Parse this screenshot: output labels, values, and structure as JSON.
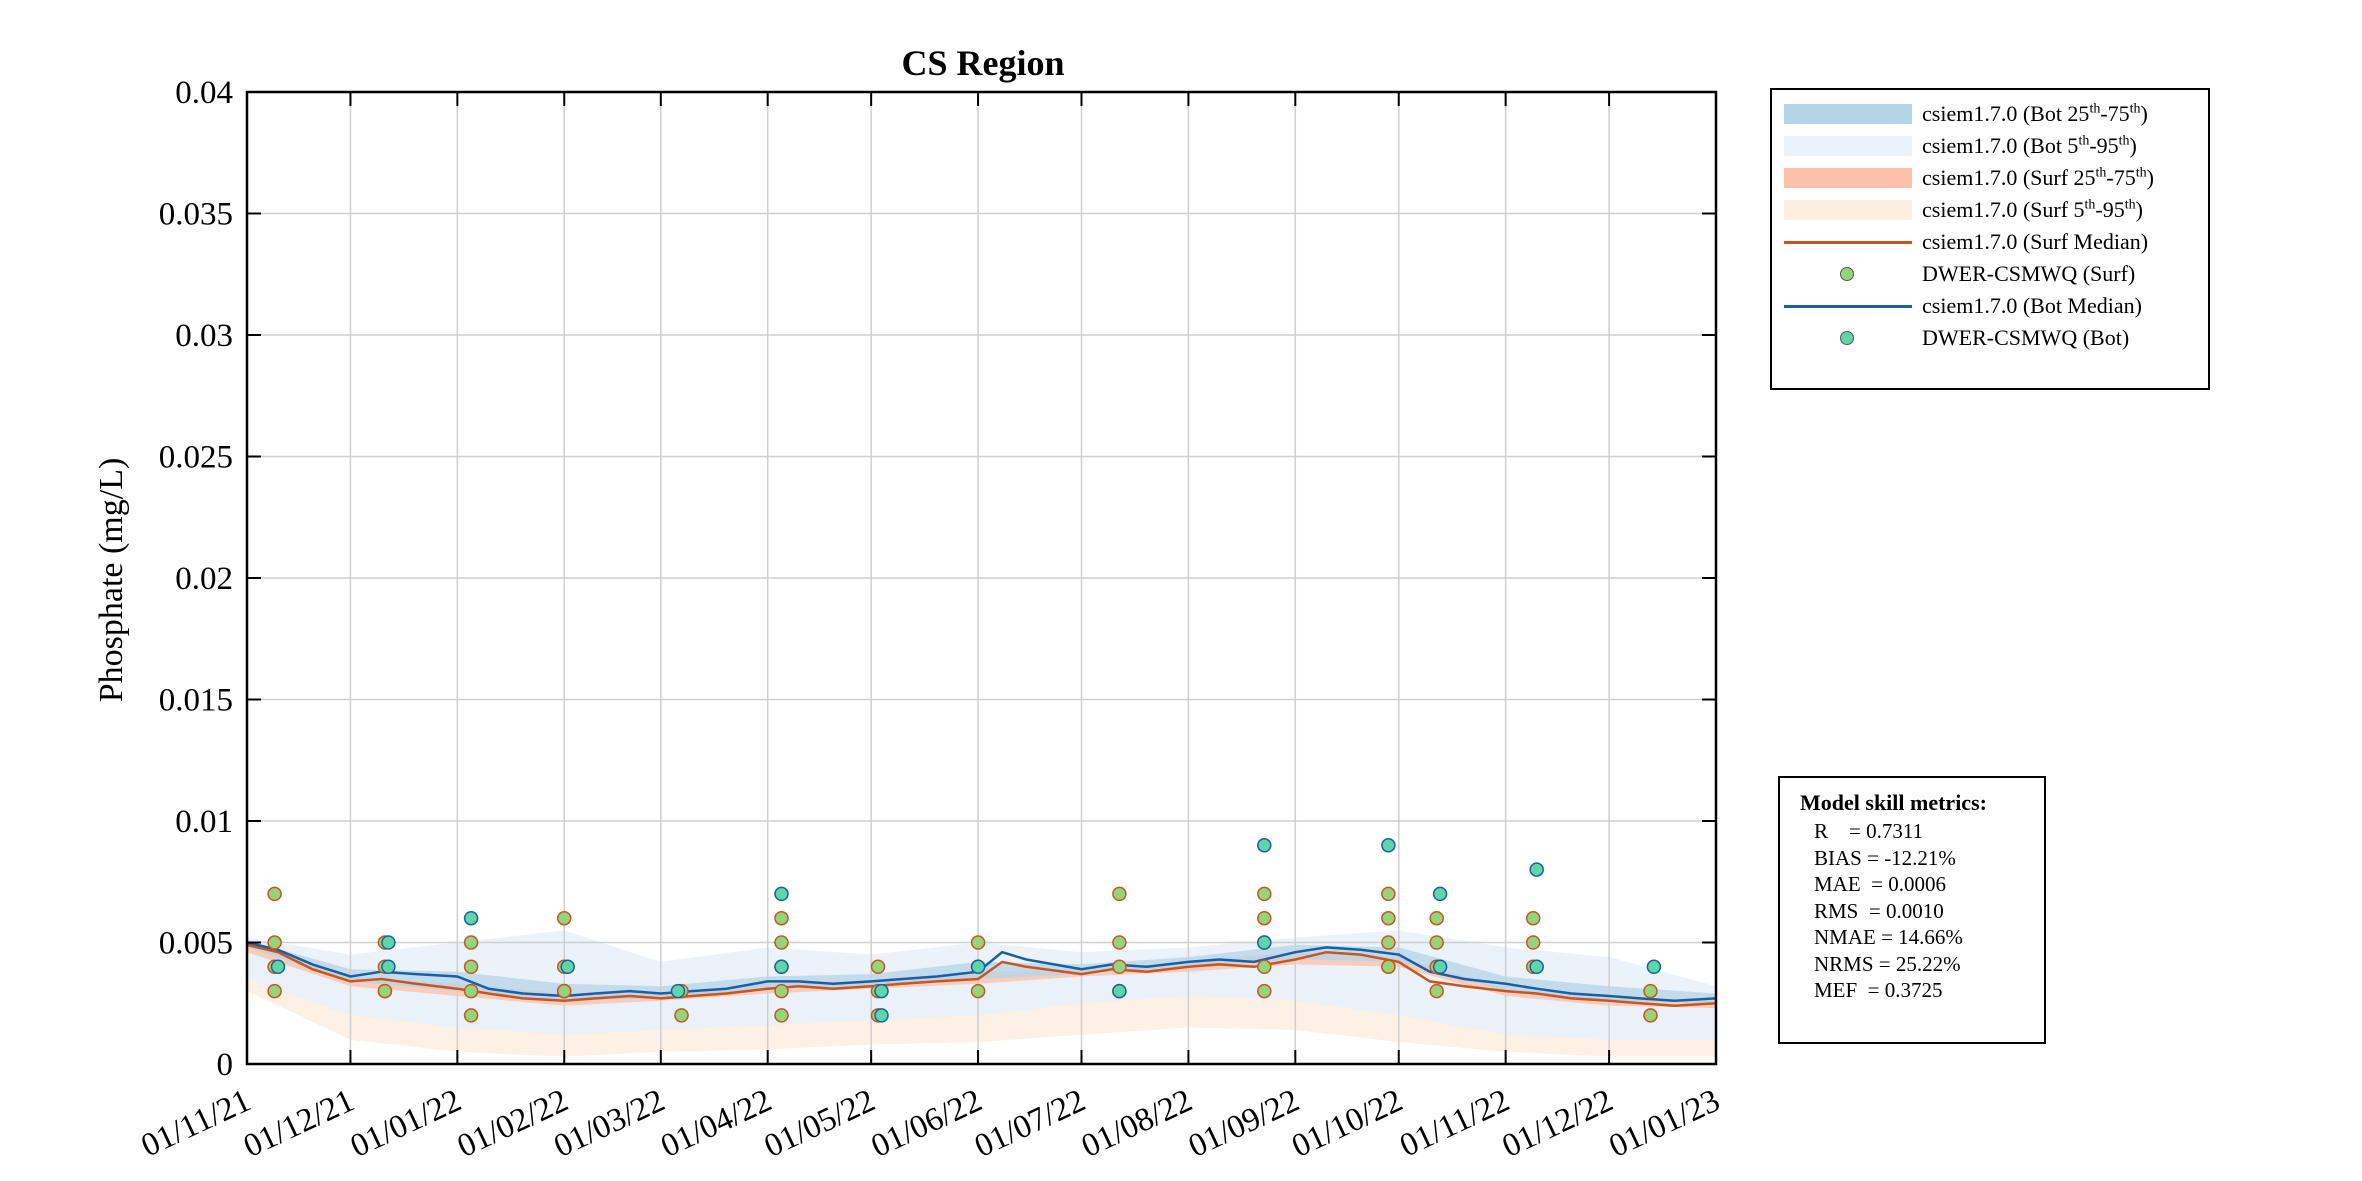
{
  "chart_data": {
    "type": "line",
    "title": "CS Region",
    "ylabel": "Phosphate (mg/L)",
    "xlabel": "",
    "xlim": [
      "2021-11-01",
      "2023-01-01"
    ],
    "ylim": [
      0,
      0.04
    ],
    "y_ticks": [
      "0",
      "0.005",
      "0.01",
      "0.015",
      "0.02",
      "0.025",
      "0.03",
      "0.035",
      "0.04"
    ],
    "x_ticks": [
      "01/11/21",
      "01/12/21",
      "01/01/22",
      "01/02/22",
      "01/03/22",
      "01/04/22",
      "01/05/22",
      "01/06/22",
      "01/07/22",
      "01/08/22",
      "01/09/22",
      "01/10/22",
      "01/11/22",
      "01/12/22",
      "01/01/23"
    ],
    "grid": true,
    "legend_position": "outside-top-right",
    "colors": {
      "bot_25_75": "#b4d4ea",
      "bot_5_95": "#e9f1f9",
      "surf_25_75": "#fdc0a9",
      "surf_5_95": "#fdeee2",
      "surf_median": "#c8561e",
      "bot_median": "#1a5fa6",
      "obs_surf": "#94d47a",
      "obs_bot": "#5fd6a6"
    },
    "legend": [
      {
        "key": "bot_25_75",
        "kind": "patch",
        "text": "csiem1.7.0 (Bot 25",
        "sup1": "th",
        "mid": "-75",
        "sup2": "th",
        "end": ")"
      },
      {
        "key": "bot_5_95",
        "kind": "patch",
        "text": "csiem1.7.0 (Bot 5",
        "sup1": "th",
        "mid": "-95",
        "sup2": "th",
        "end": ")"
      },
      {
        "key": "surf_25_75",
        "kind": "patch",
        "text": "csiem1.7.0 (Surf 25",
        "sup1": "th",
        "mid": "-75",
        "sup2": "th",
        "end": ")"
      },
      {
        "key": "surf_5_95",
        "kind": "patch",
        "text": "csiem1.7.0 (Surf 5",
        "sup1": "th",
        "mid": "-95",
        "sup2": "th",
        "end": ")"
      },
      {
        "key": "surf_median",
        "kind": "line",
        "text": "csiem1.7.0 (Surf Median)",
        "sup1": "",
        "mid": "",
        "sup2": "",
        "end": ""
      },
      {
        "key": "obs_surf",
        "kind": "marker",
        "text": "DWER-CSMWQ (Surf)",
        "sup1": "",
        "mid": "",
        "sup2": "",
        "end": ""
      },
      {
        "key": "bot_median",
        "kind": "line",
        "text": "csiem1.7.0 (Bot Median)",
        "sup1": "",
        "mid": "",
        "sup2": "",
        "end": ""
      },
      {
        "key": "obs_bot",
        "kind": "marker",
        "text": "DWER-CSMWQ (Bot)",
        "sup1": "",
        "mid": "",
        "sup2": "",
        "end": ""
      }
    ],
    "series": [
      {
        "name": "csiem1.7.0 (Surf Median)",
        "key": "surf_median",
        "x": [
          "2021-11-01",
          "2021-11-10",
          "2021-11-20",
          "2021-12-01",
          "2021-12-10",
          "2021-12-20",
          "2022-01-01",
          "2022-01-10",
          "2022-01-20",
          "2022-02-01",
          "2022-02-10",
          "2022-02-20",
          "2022-03-01",
          "2022-03-10",
          "2022-03-20",
          "2022-04-01",
          "2022-04-10",
          "2022-04-20",
          "2022-05-01",
          "2022-05-10",
          "2022-05-20",
          "2022-06-01",
          "2022-06-08",
          "2022-06-15",
          "2022-07-01",
          "2022-07-10",
          "2022-07-20",
          "2022-08-01",
          "2022-08-10",
          "2022-08-20",
          "2022-09-01",
          "2022-09-10",
          "2022-09-20",
          "2022-10-01",
          "2022-10-10",
          "2022-10-20",
          "2022-11-01",
          "2022-11-10",
          "2022-11-20",
          "2022-12-01",
          "2022-12-10",
          "2022-12-20",
          "2023-01-01"
        ],
        "y": [
          0.0049,
          0.0046,
          0.0039,
          0.0034,
          0.0035,
          0.0033,
          0.0031,
          0.0029,
          0.0027,
          0.0026,
          0.0027,
          0.0028,
          0.0027,
          0.0028,
          0.0029,
          0.0031,
          0.0032,
          0.0031,
          0.0032,
          0.0033,
          0.0034,
          0.0035,
          0.0042,
          0.004,
          0.0037,
          0.0039,
          0.0038,
          0.004,
          0.0041,
          0.004,
          0.0043,
          0.0046,
          0.0045,
          0.0042,
          0.0034,
          0.0032,
          0.003,
          0.0029,
          0.0027,
          0.0026,
          0.0025,
          0.0024,
          0.0025
        ]
      },
      {
        "name": "csiem1.7.0 (Bot Median)",
        "key": "bot_median",
        "x": [
          "2021-11-01",
          "2021-11-10",
          "2021-11-20",
          "2021-12-01",
          "2021-12-10",
          "2021-12-20",
          "2022-01-01",
          "2022-01-10",
          "2022-01-20",
          "2022-02-01",
          "2022-02-10",
          "2022-02-20",
          "2022-03-01",
          "2022-03-10",
          "2022-03-20",
          "2022-04-01",
          "2022-04-10",
          "2022-04-20",
          "2022-05-01",
          "2022-05-10",
          "2022-05-20",
          "2022-06-01",
          "2022-06-08",
          "2022-06-15",
          "2022-07-01",
          "2022-07-10",
          "2022-07-20",
          "2022-08-01",
          "2022-08-10",
          "2022-08-20",
          "2022-09-01",
          "2022-09-10",
          "2022-09-20",
          "2022-10-01",
          "2022-10-10",
          "2022-10-20",
          "2022-11-01",
          "2022-11-10",
          "2022-11-20",
          "2022-12-01",
          "2022-12-10",
          "2022-12-20",
          "2023-01-01"
        ],
        "y": [
          0.005,
          0.0047,
          0.0041,
          0.0036,
          0.0038,
          0.0037,
          0.0036,
          0.0031,
          0.0029,
          0.0028,
          0.0029,
          0.003,
          0.0029,
          0.003,
          0.0031,
          0.0034,
          0.0034,
          0.0033,
          0.0034,
          0.0035,
          0.0036,
          0.0038,
          0.0046,
          0.0043,
          0.0039,
          0.0041,
          0.004,
          0.0042,
          0.0043,
          0.0042,
          0.0046,
          0.0048,
          0.0047,
          0.0045,
          0.0038,
          0.0035,
          0.0033,
          0.0031,
          0.0029,
          0.0028,
          0.0027,
          0.0026,
          0.0027
        ]
      }
    ],
    "bands": {
      "x": [
        "2021-11-01",
        "2021-12-01",
        "2022-01-01",
        "2022-02-01",
        "2022-03-01",
        "2022-04-01",
        "2022-05-01",
        "2022-06-01",
        "2022-07-01",
        "2022-08-01",
        "2022-09-01",
        "2022-10-01",
        "2022-11-01",
        "2022-12-01",
        "2023-01-01"
      ],
      "surf_5_95": {
        "low": [
          0.003,
          0.001,
          0.0005,
          0.0003,
          0.0005,
          0.0006,
          0.0008,
          0.0009,
          0.0012,
          0.0015,
          0.0014,
          0.0009,
          0.0005,
          0.0003,
          0.0003
        ],
        "high": [
          0.005,
          0.004,
          0.0038,
          0.0034,
          0.0035,
          0.0037,
          0.0038,
          0.0042,
          0.0042,
          0.0045,
          0.0048,
          0.0046,
          0.0034,
          0.003,
          0.0028
        ]
      },
      "surf_25_75": {
        "low": [
          0.0046,
          0.0032,
          0.0028,
          0.0024,
          0.0026,
          0.0029,
          0.0031,
          0.0033,
          0.0036,
          0.0038,
          0.0041,
          0.004,
          0.0028,
          0.0024,
          0.0023
        ],
        "high": [
          0.005,
          0.0036,
          0.0033,
          0.0029,
          0.0029,
          0.0033,
          0.0034,
          0.0038,
          0.0039,
          0.0042,
          0.0046,
          0.0044,
          0.0031,
          0.0027,
          0.0026
        ]
      },
      "bot_5_95": {
        "low": [
          0.0035,
          0.002,
          0.0015,
          0.0012,
          0.0014,
          0.0016,
          0.0018,
          0.002,
          0.0025,
          0.0028,
          0.0026,
          0.002,
          0.0012,
          0.001,
          0.001
        ],
        "high": [
          0.0052,
          0.0045,
          0.005,
          0.0055,
          0.0042,
          0.0048,
          0.0045,
          0.005,
          0.0046,
          0.0048,
          0.0052,
          0.0055,
          0.0048,
          0.0044,
          0.0032
        ]
      },
      "bot_25_75": {
        "low": [
          0.0048,
          0.0034,
          0.003,
          0.0026,
          0.0027,
          0.0031,
          0.0032,
          0.0035,
          0.0037,
          0.004,
          0.0043,
          0.0042,
          0.003,
          0.0026,
          0.0025
        ],
        "high": [
          0.0051,
          0.0039,
          0.0038,
          0.0033,
          0.0032,
          0.0036,
          0.0037,
          0.0042,
          0.0041,
          0.0044,
          0.0049,
          0.0048,
          0.0036,
          0.0032,
          0.0029
        ]
      }
    },
    "observations": {
      "surf": {
        "name": "DWER-CSMWQ (Surf)",
        "key": "obs_surf",
        "x": [
          "2021-11-09",
          "2021-11-09",
          "2021-11-09",
          "2021-11-09",
          "2021-12-11",
          "2021-12-11",
          "2021-12-11",
          "2021-12-11",
          "2022-01-05",
          "2022-01-05",
          "2022-01-05",
          "2022-01-05",
          "2022-02-01",
          "2022-02-01",
          "2022-02-01",
          "2022-02-01",
          "2022-02-01",
          "2022-03-07",
          "2022-03-07",
          "2022-04-05",
          "2022-04-05",
          "2022-04-05",
          "2022-04-05",
          "2022-04-05",
          "2022-05-03",
          "2022-05-03",
          "2022-05-03",
          "2022-06-01",
          "2022-06-01",
          "2022-06-01",
          "2022-07-12",
          "2022-07-12",
          "2022-07-12",
          "2022-07-12",
          "2022-08-23",
          "2022-08-23",
          "2022-08-23",
          "2022-08-23",
          "2022-08-23",
          "2022-09-28",
          "2022-09-28",
          "2022-09-28",
          "2022-09-28",
          "2022-09-28",
          "2022-10-12",
          "2022-10-12",
          "2022-10-12",
          "2022-10-12",
          "2022-10-12",
          "2022-11-09",
          "2022-11-09",
          "2022-11-09",
          "2022-12-13",
          "2022-12-13"
        ],
        "y": [
          0.007,
          0.005,
          0.004,
          0.003,
          0.005,
          0.004,
          0.003,
          0.003,
          0.005,
          0.004,
          0.003,
          0.002,
          0.006,
          0.004,
          0.003,
          0.003,
          0.003,
          0.003,
          0.002,
          0.006,
          0.005,
          0.004,
          0.003,
          0.002,
          0.004,
          0.003,
          0.002,
          0.005,
          0.004,
          0.003,
          0.007,
          0.005,
          0.004,
          0.003,
          0.007,
          0.006,
          0.005,
          0.004,
          0.003,
          0.007,
          0.006,
          0.005,
          0.004,
          0.004,
          0.006,
          0.005,
          0.004,
          0.004,
          0.003,
          0.006,
          0.005,
          0.004,
          0.003,
          0.002
        ]
      },
      "bot": {
        "name": "DWER-CSMWQ (Bot)",
        "key": "obs_bot",
        "x": [
          "2021-11-10",
          "2021-12-12",
          "2021-12-12",
          "2022-01-05",
          "2022-02-02",
          "2022-03-06",
          "2022-04-05",
          "2022-04-05",
          "2022-05-04",
          "2022-05-04",
          "2022-06-01",
          "2022-07-12",
          "2022-08-23",
          "2022-08-23",
          "2022-09-28",
          "2022-10-13",
          "2022-10-13",
          "2022-11-10",
          "2022-11-10",
          "2022-12-14"
        ],
        "y": [
          0.004,
          0.005,
          0.004,
          0.006,
          0.004,
          0.003,
          0.007,
          0.004,
          0.003,
          0.002,
          0.004,
          0.003,
          0.009,
          0.005,
          0.009,
          0.007,
          0.004,
          0.008,
          0.004,
          0.004
        ]
      }
    }
  },
  "metrics": {
    "title": "Model skill metrics:",
    "rows": [
      "R    = 0.7311",
      "BIAS = -12.21%",
      "MAE  = 0.0006",
      "RMS  = 0.0010",
      "NMAE = 14.66%",
      "NRMS = 25.22%",
      "MEF  = 0.3725"
    ]
  }
}
